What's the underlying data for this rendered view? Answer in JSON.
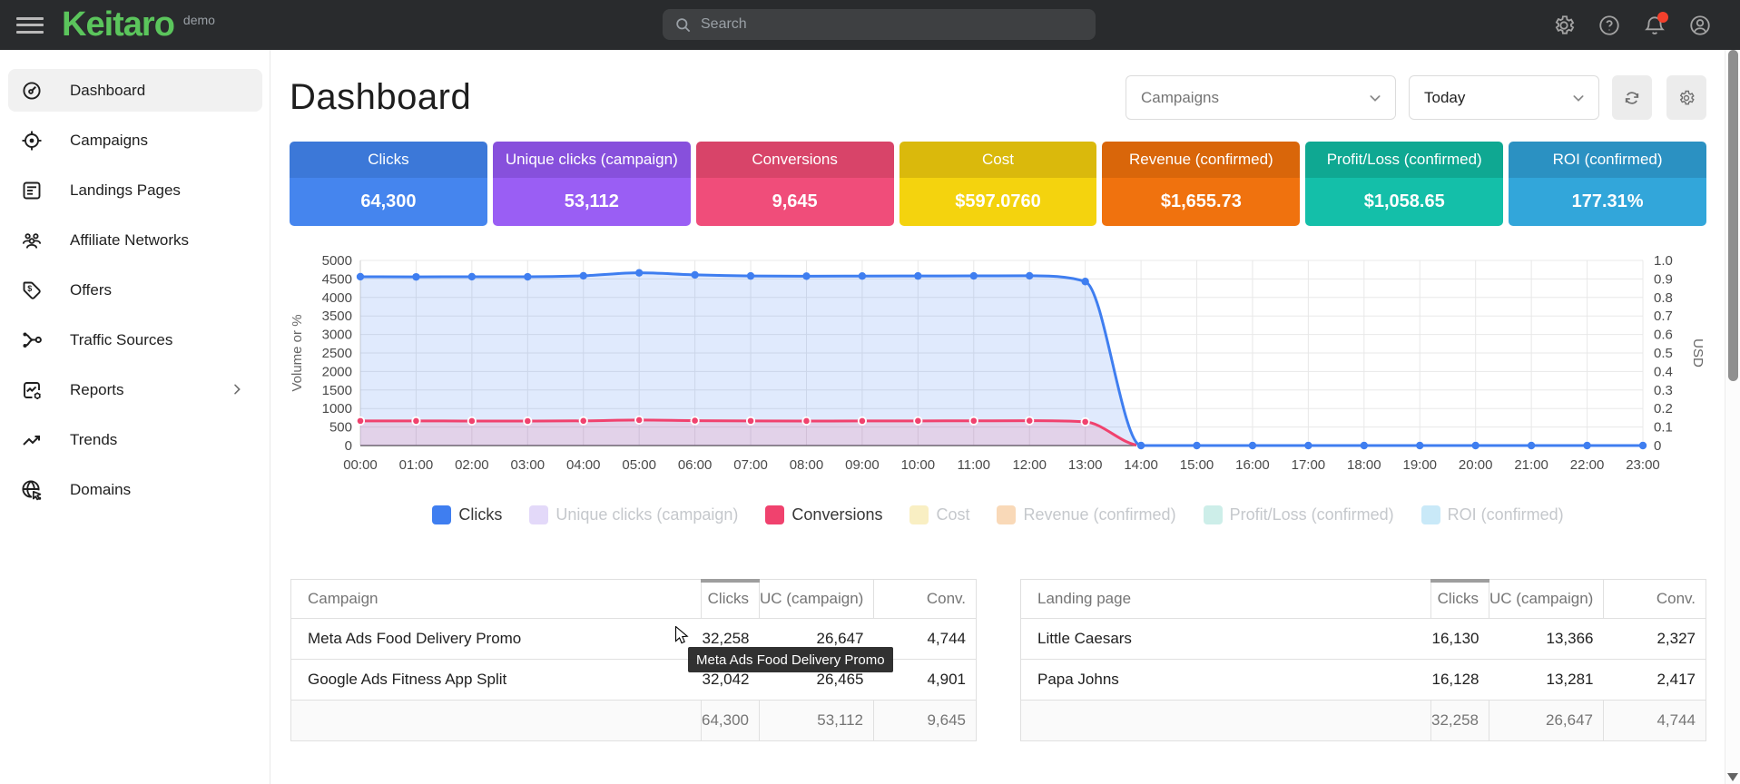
{
  "topbar": {
    "logo": "Keitaro",
    "env_label": "demo",
    "search": {
      "placeholder": "Search",
      "value": ""
    },
    "icons": [
      "settings-icon",
      "help-icon",
      "notifications-icon",
      "account-icon"
    ],
    "notifications_badge": true
  },
  "sidebar": {
    "items": [
      {
        "label": "Dashboard",
        "icon": "dashboard-gauge-icon",
        "active": true
      },
      {
        "label": "Campaigns",
        "icon": "target-icon",
        "active": false
      },
      {
        "label": "Landings Pages",
        "icon": "document-icon",
        "active": false
      },
      {
        "label": "Affiliate Networks",
        "icon": "people-icon",
        "active": false
      },
      {
        "label": "Offers",
        "icon": "price-tag-icon",
        "active": false
      },
      {
        "label": "Traffic Sources",
        "icon": "branch-icon",
        "active": false
      },
      {
        "label": "Reports",
        "icon": "report-chart-icon",
        "active": false,
        "has_submenu": true
      },
      {
        "label": "Trends",
        "icon": "trending-up-icon",
        "active": false
      },
      {
        "label": "Domains",
        "icon": "globe-icon",
        "active": false
      }
    ]
  },
  "header": {
    "title": "Dashboard",
    "group_select": {
      "value": "Campaigns"
    },
    "period_select": {
      "value": "Today"
    },
    "buttons": [
      "refresh-button",
      "settings-button"
    ]
  },
  "metric_cards": [
    {
      "label": "Clicks",
      "value": "64,300",
      "color": "#4585ee",
      "header_color": "#3c78d8"
    },
    {
      "label": "Unique clicks (campaign)",
      "value": "53,112",
      "color": "#9a5ef4",
      "header_color": "#8750dc"
    },
    {
      "label": "Conversions",
      "value": "9,645",
      "color": "#f04d7a",
      "header_color": "#d84469"
    },
    {
      "label": "Cost",
      "value": "$597.0760",
      "color": "#f4d30e",
      "header_color": "#dab90c"
    },
    {
      "label": "Revenue (confirmed)",
      "value": "$1,655.73",
      "color": "#f0720e",
      "header_color": "#d9660a"
    },
    {
      "label": "Profit/Loss (confirmed)",
      "value": "$1,058.65",
      "color": "#14bfa9",
      "header_color": "#0fa892"
    },
    {
      "label": "ROI (confirmed)",
      "value": "177.31%",
      "color": "#32a6da",
      "header_color": "#2b91c2"
    }
  ],
  "chart_data": {
    "type": "line",
    "x": [
      "00:00",
      "01:00",
      "02:00",
      "03:00",
      "04:00",
      "05:00",
      "06:00",
      "07:00",
      "08:00",
      "09:00",
      "10:00",
      "11:00",
      "12:00",
      "13:00",
      "14:00",
      "15:00",
      "16:00",
      "17:00",
      "18:00",
      "19:00",
      "20:00",
      "21:00",
      "22:00",
      "23:00"
    ],
    "series": [
      {
        "name": "Clicks",
        "color": "#3f7ef0",
        "values": [
          4560,
          4555,
          4560,
          4558,
          4585,
          4665,
          4610,
          4580,
          4575,
          4578,
          4580,
          4582,
          4585,
          4430,
          0,
          0,
          0,
          0,
          0,
          0,
          0,
          0,
          0,
          0
        ]
      },
      {
        "name": "Conversions",
        "color": "#f0426e",
        "values": [
          665,
          664,
          663,
          662,
          667,
          688,
          672,
          665,
          663,
          664,
          666,
          668,
          670,
          640,
          0,
          0,
          0,
          0,
          0,
          0,
          0,
          0,
          0,
          0
        ]
      }
    ],
    "ylabel_left": "Volume or %",
    "ylabel_right": "USD",
    "ylim_left": [
      0,
      5000
    ],
    "ytick_step_left": 500,
    "ylim_right": [
      0,
      1.0
    ],
    "ytick_step_right": 0.1,
    "grid": true,
    "legend_position": "bottom",
    "legend": [
      {
        "label": "Clicks",
        "swatch": "#3f7ef0",
        "active": true
      },
      {
        "label": "Unique clicks (campaign)",
        "swatch": "#e3d9f9",
        "active": false
      },
      {
        "label": "Conversions",
        "swatch": "#f0426e",
        "active": true
      },
      {
        "label": "Cost",
        "swatch": "#f9efc3",
        "active": false
      },
      {
        "label": "Revenue (confirmed)",
        "swatch": "#f9d9b8",
        "active": false
      },
      {
        "label": "Profit/Loss (confirmed)",
        "swatch": "#cdeee9",
        "active": false
      },
      {
        "label": "ROI (confirmed)",
        "swatch": "#c9e9f8",
        "active": false
      }
    ]
  },
  "campaign_table": {
    "columns": [
      "Campaign",
      "Clicks",
      "UC (campaign)",
      "Conv."
    ],
    "sorted_column": "Clicks",
    "rows": [
      {
        "name": "Meta Ads Food Delivery Promo",
        "clicks": "32,258",
        "uc": "26,647",
        "conv": "4,744"
      },
      {
        "name": "Google Ads Fitness App Split",
        "clicks": "32,042",
        "uc": "26,465",
        "conv": "4,901"
      }
    ],
    "totals": {
      "clicks": "64,300",
      "uc": "53,112",
      "conv": "9,645"
    }
  },
  "landing_table": {
    "columns": [
      "Landing page",
      "Clicks",
      "UC (campaign)",
      "Conv."
    ],
    "sorted_column": "Clicks",
    "rows": [
      {
        "name": "Little Caesars",
        "clicks": "16,130",
        "uc": "13,366",
        "conv": "2,327"
      },
      {
        "name": "Papa Johns",
        "clicks": "16,128",
        "uc": "13,281",
        "conv": "2,417"
      }
    ],
    "totals": {
      "clicks": "32,258",
      "uc": "26,647",
      "conv": "4,744"
    }
  },
  "tooltip": {
    "text": "Meta Ads Food Delivery Promo"
  }
}
